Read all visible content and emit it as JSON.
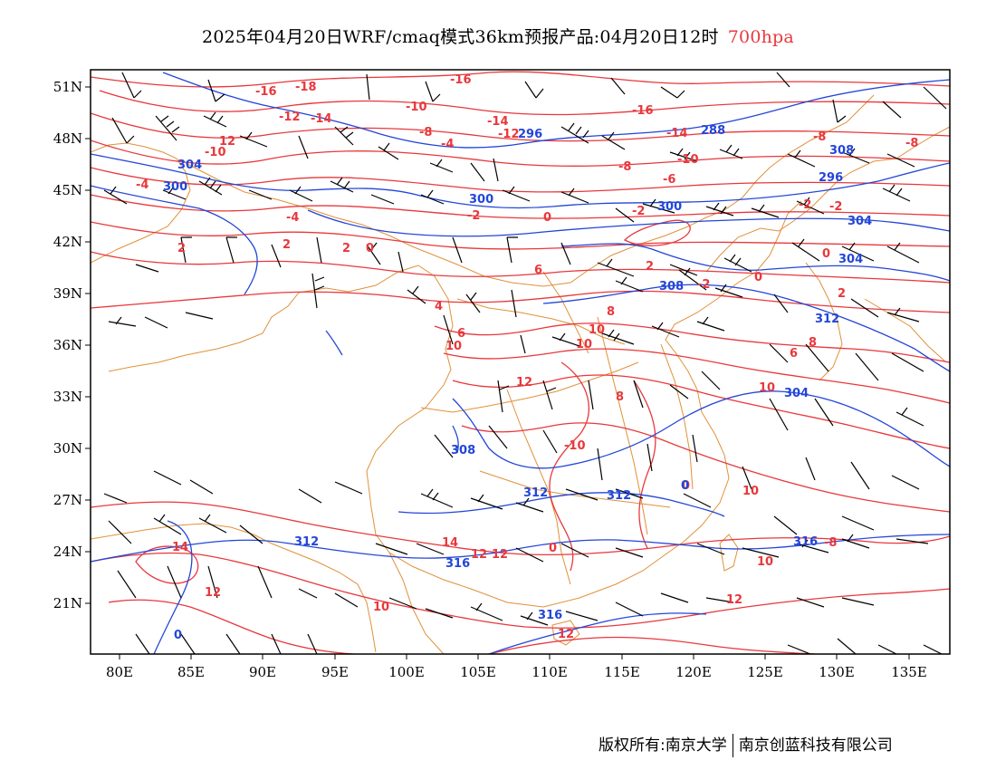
{
  "title": {
    "main": "2025年04月20日WRF/cmaq模式36km预报产品:04月20日12时",
    "level": "700hpa"
  },
  "footer": {
    "copyright": "版权所有:南京大学",
    "company": "南京创蓝科技有限公司"
  },
  "colors": {
    "temperature": "#e8383c",
    "geopotential": "#2346d8",
    "border": "#e0913a",
    "wind_barb": "#000000"
  },
  "icons": [
    "wind-barb-icon"
  ],
  "axes": {
    "lon_labels": [
      "80E",
      "85E",
      "90E",
      "95E",
      "100E",
      "105E",
      "110E",
      "115E",
      "120E",
      "125E",
      "130E",
      "135E"
    ],
    "lat_labels": [
      "51N",
      "48N",
      "45N",
      "42N",
      "39N",
      "36N",
      "33N",
      "30N",
      "27N",
      "24N",
      "21N"
    ]
  },
  "contour_labels": {
    "temperature": [
      "-16",
      "-18",
      "-16",
      "-12",
      "-14",
      "-10",
      "-16",
      "-14",
      "-8",
      "-4",
      "-12",
      "-14",
      "-10",
      "-10",
      "12",
      "-8",
      "-8",
      "-8",
      "-6",
      "-4",
      "-2",
      "-4",
      "-2",
      "-2",
      "-2",
      "2",
      "2",
      "0",
      "0",
      "2",
      "0",
      "4",
      "6",
      "2",
      "0",
      "2",
      "-2",
      "6",
      "8",
      "8",
      "10",
      "10",
      "10",
      "12",
      "8",
      "6",
      "-10",
      "10",
      "0",
      "14",
      "12",
      "12",
      "10",
      "0",
      "10",
      "12",
      "14",
      "12",
      "12",
      "10",
      "-8"
    ],
    "geopotential": [
      "296",
      "288",
      "304",
      "308",
      "296",
      "300",
      "300",
      "300",
      "304",
      "304",
      "308",
      "312",
      "304",
      "308",
      "312",
      "312",
      "312",
      "316",
      "316",
      "316",
      "0"
    ]
  }
}
